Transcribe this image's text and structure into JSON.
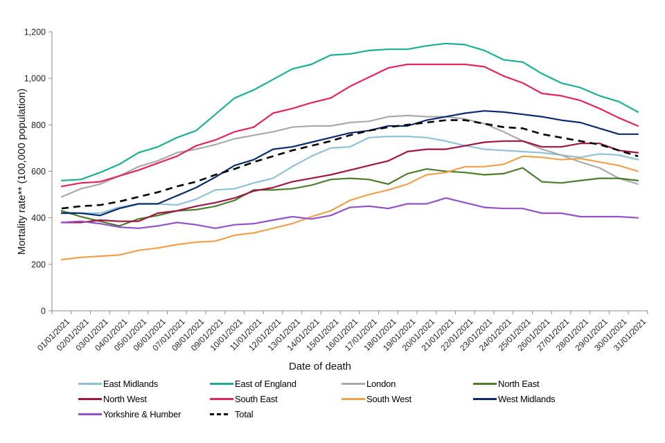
{
  "chart_data": {
    "type": "line",
    "title": "",
    "xlabel": "Date of death",
    "ylabel": "Mortality rate** (100,000 population)",
    "ylim": [
      0,
      1200
    ],
    "yticks": [
      0,
      200,
      400,
      600,
      800,
      1000,
      1200
    ],
    "ytick_labels": [
      "0",
      "200",
      "400",
      "600",
      "800",
      "1,000",
      "1,200"
    ],
    "grid": false,
    "legend_position": "bottom",
    "x": [
      "01/01/2021",
      "02/01/2021",
      "03/01/2021",
      "04/01/2021",
      "05/01/2021",
      "06/01/2021",
      "07/01/2021",
      "08/01/2021",
      "09/01/2021",
      "10/01/2021",
      "11/01/2021",
      "12/01/2021",
      "13/01/2021",
      "14/01/2021",
      "15/01/2021",
      "16/01/2021",
      "17/01/2021",
      "18/01/2021",
      "19/01/2021",
      "20/01/2021",
      "21/01/2021",
      "22/01/2021",
      "23/01/2021",
      "24/01/2021",
      "25/01/2021",
      "26/01/2021",
      "27/01/2021",
      "28/01/2021",
      "29/01/2021",
      "30/01/2021",
      "31/01/2021"
    ],
    "series": [
      {
        "name": "East Midlands",
        "color": "#8fc1d8",
        "dashed": false,
        "values": [
          425,
          420,
          420,
          445,
          460,
          460,
          455,
          480,
          520,
          525,
          550,
          570,
          620,
          665,
          700,
          705,
          745,
          750,
          750,
          745,
          730,
          710,
          695,
          690,
          685,
          680,
          670,
          660,
          675,
          670,
          650
        ]
      },
      {
        "name": "East of England",
        "color": "#1aae96",
        "dashed": false,
        "values": [
          560,
          565,
          595,
          630,
          680,
          705,
          745,
          775,
          845,
          915,
          950,
          995,
          1040,
          1060,
          1100,
          1105,
          1120,
          1125,
          1125,
          1140,
          1150,
          1145,
          1120,
          1080,
          1070,
          1020,
          980,
          960,
          925,
          900,
          855
        ]
      },
      {
        "name": "London",
        "color": "#a9a9a9",
        "dashed": false,
        "values": [
          490,
          525,
          545,
          580,
          620,
          645,
          680,
          695,
          715,
          740,
          755,
          770,
          790,
          795,
          795,
          810,
          815,
          835,
          840,
          835,
          835,
          825,
          805,
          770,
          730,
          695,
          670,
          640,
          615,
          570,
          545
        ]
      },
      {
        "name": "North East",
        "color": "#4b7d2c",
        "dashed": false,
        "values": [
          430,
          405,
          385,
          365,
          395,
          410,
          430,
          435,
          450,
          475,
          520,
          520,
          525,
          540,
          565,
          570,
          565,
          545,
          590,
          610,
          600,
          595,
          585,
          590,
          615,
          555,
          550,
          560,
          570,
          570,
          560
        ]
      },
      {
        "name": "North West",
        "color": "#a0153e",
        "dashed": false,
        "values": [
          380,
          380,
          390,
          385,
          385,
          420,
          430,
          450,
          465,
          485,
          515,
          530,
          555,
          570,
          585,
          605,
          625,
          645,
          685,
          695,
          695,
          710,
          725,
          730,
          730,
          705,
          705,
          720,
          720,
          690,
          680
        ]
      },
      {
        "name": "South East",
        "color": "#e5245a",
        "dashed": false,
        "values": [
          535,
          550,
          555,
          580,
          605,
          635,
          665,
          710,
          735,
          770,
          790,
          850,
          870,
          895,
          915,
          965,
          1005,
          1045,
          1060,
          1060,
          1060,
          1060,
          1050,
          1010,
          980,
          935,
          925,
          905,
          870,
          830,
          795
        ]
      },
      {
        "name": "South West",
        "color": "#f0a04b",
        "dashed": false,
        "values": [
          220,
          230,
          235,
          240,
          260,
          270,
          285,
          295,
          300,
          325,
          335,
          355,
          375,
          405,
          430,
          475,
          500,
          520,
          545,
          585,
          595,
          620,
          620,
          630,
          665,
          660,
          650,
          655,
          640,
          625,
          600
        ]
      },
      {
        "name": "West Midlands",
        "color": "#0a2a6e",
        "dashed": false,
        "values": [
          420,
          420,
          410,
          440,
          460,
          460,
          495,
          530,
          575,
          625,
          650,
          695,
          705,
          725,
          745,
          765,
          775,
          795,
          795,
          820,
          835,
          850,
          860,
          855,
          845,
          835,
          820,
          810,
          785,
          760,
          760
        ]
      },
      {
        "name": "Yorkshire & Humber",
        "color": "#9350c8",
        "dashed": false,
        "values": [
          380,
          385,
          375,
          360,
          355,
          365,
          380,
          370,
          355,
          370,
          375,
          390,
          405,
          395,
          410,
          445,
          450,
          440,
          460,
          460,
          485,
          465,
          445,
          440,
          440,
          420,
          420,
          405,
          405,
          405,
          400
        ]
      },
      {
        "name": "Total",
        "color": "#000000",
        "dashed": true,
        "values": [
          440,
          450,
          455,
          470,
          490,
          510,
          535,
          555,
          585,
          610,
          640,
          665,
          690,
          710,
          730,
          755,
          775,
          790,
          800,
          810,
          820,
          820,
          805,
          790,
          785,
          760,
          745,
          730,
          715,
          690,
          665
        ]
      }
    ]
  }
}
